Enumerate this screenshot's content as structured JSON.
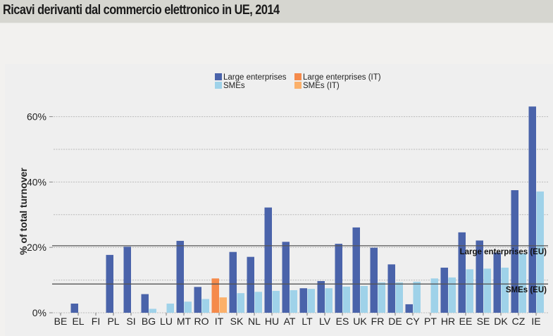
{
  "header": {
    "title": "Ricavi derivanti dal commercio elettronico in UE, 2014"
  },
  "chart_data": {
    "type": "bar",
    "title": "Ricavi derivanti dal commercio elettronico in UE, 2014",
    "xlabel": "",
    "ylabel": "% of total turnover",
    "ylim": [
      0,
      65
    ],
    "yticks": [
      0,
      20,
      40,
      60
    ],
    "ytick_labels": [
      "0%",
      "20%",
      "40%",
      "60%"
    ],
    "grid": "dotted horizontal every 10%",
    "legend_position": "top-center",
    "categories": [
      "BE",
      "EL",
      "FI",
      "PL",
      "SI",
      "BG",
      "LU",
      "MT",
      "RO",
      "IT",
      "SK",
      "NL",
      "HU",
      "AT",
      "LT",
      "LV",
      "ES",
      "UK",
      "FR",
      "DE",
      "CY",
      "PT",
      "HR",
      "EE",
      "SE",
      "DK",
      "CZ",
      "IE"
    ],
    "series": [
      {
        "name": "Large enterprises",
        "color": "#4a63aa",
        "highlight_color": "#f58a4b",
        "values": [
          null,
          2.8,
          null,
          17.7,
          20.2,
          5.7,
          null,
          22.0,
          7.9,
          10.5,
          18.6,
          17.1,
          32.2,
          21.7,
          7.5,
          9.7,
          21.1,
          26.1,
          19.9,
          14.8,
          2.6,
          null,
          13.8,
          24.6,
          22.1,
          18.4,
          37.5,
          63.1
        ]
      },
      {
        "name": "SMEs",
        "color": "#9fd2e9",
        "highlight_color": "#fbb06a",
        "values": [
          null,
          null,
          null,
          null,
          null,
          1.2,
          2.8,
          3.4,
          4.2,
          4.7,
          6.0,
          6.4,
          6.7,
          6.9,
          7.3,
          7.5,
          8.0,
          8.2,
          9.3,
          9.3,
          9.5,
          10.5,
          10.8,
          13.3,
          13.5,
          13.8,
          18.2,
          37.1
        ]
      }
    ],
    "highlight_category": "IT",
    "legend": [
      {
        "label": "Large enterprises",
        "color": "#4a63aa"
      },
      {
        "label": "SMEs",
        "color": "#9fd2e9"
      },
      {
        "label": "Large enterprises (IT)",
        "color": "#f58a4b"
      },
      {
        "label": "SMEs (IT)",
        "color": "#fbb06a"
      }
    ],
    "reference_lines": [
      {
        "label": "Large enterprises (EU)",
        "value": 20.5
      },
      {
        "label": "SMEs (EU)",
        "value": 8.8
      }
    ]
  }
}
